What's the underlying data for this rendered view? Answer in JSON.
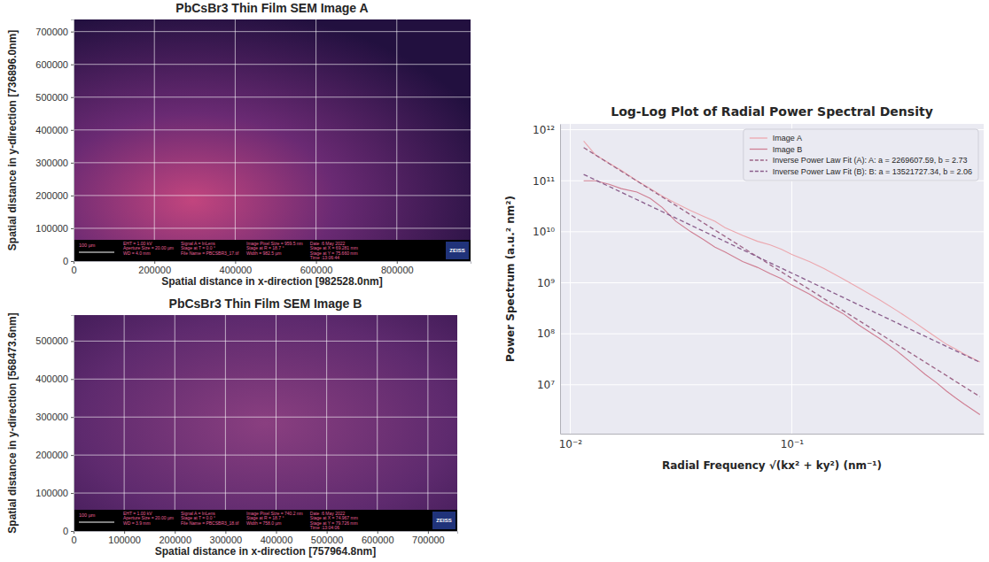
{
  "chart_data": [
    {
      "type": "image",
      "title": "PbCsBr3 Thin Film SEM Image A",
      "x_label": "Spatial distance in x-direction [982528.0nm]",
      "y_label": "Spatial distance in y-direction [736896.0nm]",
      "xlim": [
        0,
        982528
      ],
      "ylim": [
        0,
        736896
      ],
      "xticks": [
        0,
        200000,
        400000,
        600000,
        800000
      ],
      "yticks": [
        0,
        100000,
        200000,
        300000,
        400000,
        500000,
        600000,
        700000
      ],
      "grid": true,
      "scale_bar": "100 µm",
      "logo": "ZEISS",
      "info_bar": [
        [
          "EHT = 1.00 kV",
          "Aperture Size = 20.00 µm",
          "WD = 4.0 mm"
        ],
        [
          "Signal A = InLens",
          "Stage at T = 0.0 °",
          "File Name = PBCSBR3_17.tif"
        ],
        [
          "Image Pixel Size = 959.5 nm",
          "Stage at R = 18.7 °",
          "Width = 982.5 µm"
        ],
        [
          "Date :6 May 2022",
          "Stage at X = 69.281 mm",
          "Stage at Y = 75.660 mm",
          "Time :13:06:44"
        ]
      ]
    },
    {
      "type": "image",
      "title": "PbCsBr3 Thin Film SEM Image B",
      "x_label": "Spatial distance in x-direction [757964.8nm]",
      "y_label": "Spatial distance in y-direction [568473.6nm]",
      "xlim": [
        0,
        757964.8
      ],
      "ylim": [
        0,
        568473.6
      ],
      "xticks": [
        0,
        100000,
        200000,
        300000,
        400000,
        500000,
        600000,
        700000
      ],
      "yticks": [
        0,
        100000,
        200000,
        300000,
        400000,
        500000
      ],
      "grid": true,
      "scale_bar": "100 µm",
      "logo": "ZEISS",
      "info_bar": [
        [
          "EHT = 1.00 kV",
          "Aperture Size = 20.00 µm",
          "WD = 3.9 mm"
        ],
        [
          "Signal A = InLens",
          "Stage at T = 0.0 °",
          "File Name = PBCSBR3_18.tif"
        ],
        [
          "Image Pixel Size = 740.2 nm",
          "Stage at R = 18.7 °",
          "Width = 758.0 µm"
        ],
        [
          "Date :6 May 2022",
          "Stage at X = 74.967 mm",
          "Stage at Y = 79.726 mm",
          "Time :13:04:06"
        ]
      ]
    },
    {
      "type": "line",
      "title": "Log-Log Plot of Radial Power Spectral Density",
      "x_label": "Radial Frequency √(kx² + ky²) (nm⁻¹)",
      "y_label": "Power Spectrum (a.u.² nm²)",
      "log": true,
      "grid": true,
      "legend": "upper right",
      "xlim": [
        0.009,
        0.735
      ],
      "ylim": [
        1100000,
        1300000000000
      ],
      "xticks": [
        {
          "value": 0.01,
          "label": "10⁻²"
        },
        {
          "value": 0.1,
          "label": "10⁻¹"
        }
      ],
      "yticks": [
        {
          "value": 10000000,
          "label": "10⁷"
        },
        {
          "value": 100000000,
          "label": "10⁸"
        },
        {
          "value": 1000000000,
          "label": "10⁹"
        },
        {
          "value": 10000000000,
          "label": "10¹⁰"
        },
        {
          "value": 100000000000,
          "label": "10¹¹"
        },
        {
          "value": 1000000000000,
          "label": "10¹²"
        }
      ],
      "x": [
        0.0115,
        0.013,
        0.015,
        0.017,
        0.02,
        0.023,
        0.026,
        0.03,
        0.035,
        0.04,
        0.045,
        0.05,
        0.06,
        0.07,
        0.08,
        0.09,
        0.1,
        0.12,
        0.14,
        0.17,
        0.2,
        0.25,
        0.3,
        0.35,
        0.4,
        0.45,
        0.5,
        0.55,
        0.6,
        0.707
      ],
      "series": [
        {
          "name": "Image A",
          "color": "#eca7ae",
          "values": [
            600000000000,
            320000000000,
            220000000000,
            160000000000,
            100000000000,
            70000000000,
            50000000000,
            36000000000,
            26000000000,
            20000000000,
            16000000000,
            12000000000,
            8500000000,
            6500000000,
            5500000000,
            4500000000,
            3600000000,
            2600000000,
            1900000000,
            1200000000,
            800000000,
            460000000,
            280000000,
            180000000,
            120000000,
            85000000,
            62000000,
            50000000,
            40000000,
            28000000
          ]
        },
        {
          "name": "Image B",
          "color": "#cf7f93",
          "values": [
            100000000000,
            100000000000,
            85000000000,
            70000000000,
            60000000000,
            45000000000,
            30000000000,
            16000000000,
            10000000000,
            7000000000,
            5000000000,
            4000000000,
            2600000000,
            2000000000,
            1500000000,
            1200000000,
            900000000,
            600000000,
            400000000,
            250000000,
            150000000,
            80000000,
            45000000,
            26000000,
            16000000,
            11000000,
            7500000,
            5500000,
            4200000,
            2600000
          ]
        },
        {
          "name": "Inverse Power Law Fit (A): A: a = 2269607.59, b = 2.73",
          "color": "#9c6486",
          "line_style": "dashed",
          "x": [
            0.0115,
            0.707
          ],
          "values": [
            447000000000,
            5850000
          ]
        },
        {
          "name": "Inverse Power Law Fit (B): B: a = 13521727.34, b = 2.06",
          "color": "#8a5e8c",
          "line_style": "dashed",
          "x": [
            0.0115,
            0.707
          ],
          "values": [
            133000000000,
            27600000
          ]
        }
      ]
    }
  ]
}
